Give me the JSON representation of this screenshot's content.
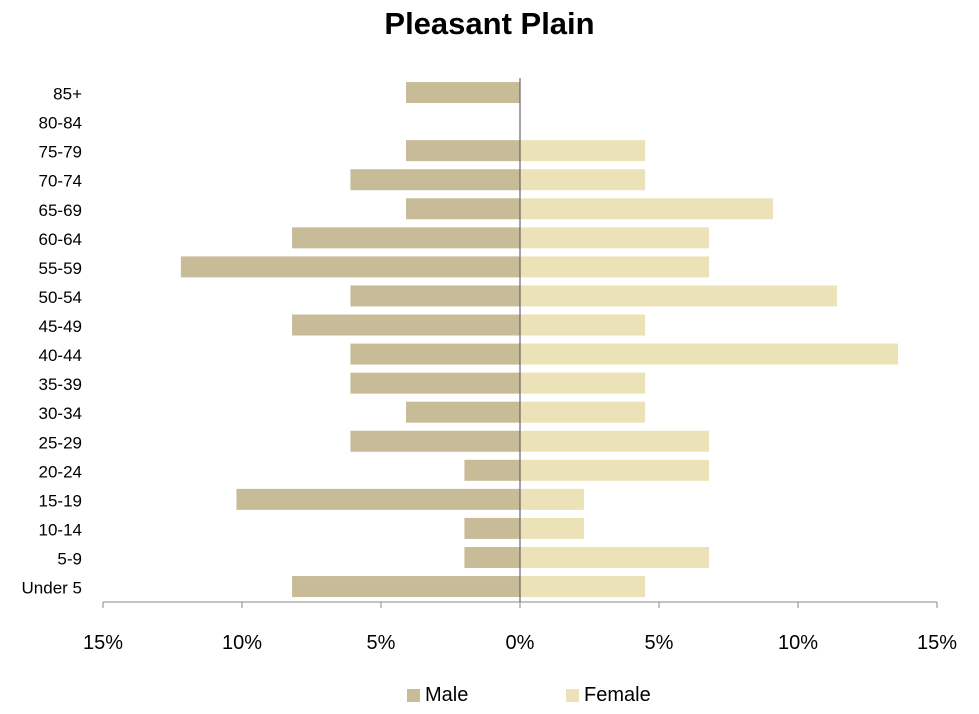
{
  "chart_data": {
    "type": "bar",
    "orientation": "horizontal",
    "variant": "population-pyramid",
    "title": "Pleasant Plain",
    "categories": [
      "85+",
      "80-84",
      "75-79",
      "70-74",
      "65-69",
      "60-64",
      "55-59",
      "50-54",
      "45-49",
      "40-44",
      "35-39",
      "30-34",
      "25-29",
      "20-24",
      "15-19",
      "10-14",
      "5-9",
      "Under 5"
    ],
    "series": [
      {
        "name": "Male",
        "color": "#c8bc98",
        "values": [
          4.1,
          0,
          4.1,
          6.1,
          4.1,
          8.2,
          12.2,
          6.1,
          8.2,
          6.1,
          6.1,
          4.1,
          6.1,
          2.0,
          10.2,
          2.0,
          2.0,
          8.2
        ]
      },
      {
        "name": "Female",
        "color": "#ebe2b8",
        "values": [
          0,
          0,
          4.5,
          4.5,
          9.1,
          6.8,
          6.8,
          11.4,
          4.5,
          13.6,
          4.5,
          4.5,
          6.8,
          6.8,
          2.3,
          2.3,
          6.8,
          4.5
        ]
      }
    ],
    "xlim": [
      -15,
      15
    ],
    "xticks": [
      -15,
      -10,
      -5,
      0,
      5,
      10,
      15
    ],
    "xtick_labels": [
      "15%",
      "10%",
      "5%",
      "0%",
      "5%",
      "10%",
      "15%"
    ],
    "xlabel": "",
    "ylabel": "",
    "grid": false,
    "legend": "bottom"
  }
}
